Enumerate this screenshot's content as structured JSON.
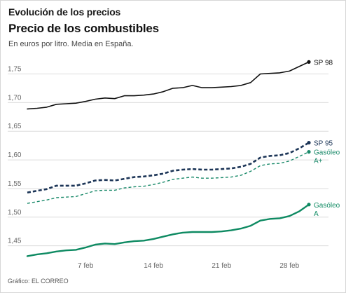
{
  "header": {
    "kicker": "Evolución de los precios",
    "title": "Precio de los combustibles",
    "subtitle": "En euros por litro. Media en España."
  },
  "footer": {
    "source": "Gráfico: EL CORREO"
  },
  "chart_data": {
    "type": "line",
    "title": "Precio de los combustibles",
    "subtitle": "En euros por litro. Media en España.",
    "xlabel": "",
    "ylabel": "",
    "ylim": [
      1.43,
      1.78
    ],
    "y_ticks": [
      1.45,
      1.5,
      1.55,
      1.6,
      1.65,
      1.7,
      1.75
    ],
    "y_tick_labels": [
      "1,45",
      "1,50",
      "1,55",
      "1,60",
      "1,65",
      "1,70",
      "1,75"
    ],
    "x_tick_labels": [
      "7 feb",
      "14 feb",
      "21 feb",
      "28 feb"
    ],
    "x_tick_days": [
      7,
      14,
      21,
      28
    ],
    "x": [
      1,
      2,
      3,
      4,
      5,
      6,
      7,
      8,
      9,
      10,
      11,
      12,
      13,
      14,
      15,
      16,
      17,
      18,
      19,
      20,
      21,
      22,
      23,
      24,
      25,
      26,
      27,
      28,
      29,
      30
    ],
    "xlim": [
      1,
      30
    ],
    "grid": true,
    "legend": "end-of-line labels",
    "series": [
      {
        "name": "SP 98",
        "label_lines": [
          "SP 98"
        ],
        "color": "#111111",
        "style": "solid",
        "values": [
          1.689,
          1.69,
          1.692,
          1.697,
          1.698,
          1.699,
          1.702,
          1.706,
          1.708,
          1.707,
          1.712,
          1.712,
          1.713,
          1.715,
          1.719,
          1.725,
          1.726,
          1.73,
          1.726,
          1.726,
          1.727,
          1.728,
          1.73,
          1.735,
          1.75,
          1.751,
          1.752,
          1.755,
          1.763,
          1.771
        ]
      },
      {
        "name": "SP 95",
        "label_lines": [
          "SP 95"
        ],
        "color": "#1c3557",
        "style": "dashed-bold",
        "values": [
          1.543,
          1.546,
          1.549,
          1.555,
          1.555,
          1.555,
          1.559,
          1.564,
          1.565,
          1.564,
          1.567,
          1.57,
          1.571,
          1.573,
          1.576,
          1.581,
          1.583,
          1.584,
          1.583,
          1.583,
          1.584,
          1.585,
          1.588,
          1.593,
          1.604,
          1.607,
          1.608,
          1.612,
          1.62,
          1.63
        ]
      },
      {
        "name": "Gasóleo A+",
        "label_lines": [
          "Gasóleo",
          "A+"
        ],
        "color": "#1a8a6a",
        "style": "dashed-thin",
        "values": [
          1.524,
          1.527,
          1.53,
          1.534,
          1.535,
          1.536,
          1.541,
          1.546,
          1.547,
          1.547,
          1.551,
          1.553,
          1.554,
          1.557,
          1.561,
          1.566,
          1.568,
          1.57,
          1.568,
          1.568,
          1.569,
          1.57,
          1.573,
          1.58,
          1.59,
          1.593,
          1.594,
          1.598,
          1.606,
          1.614
        ]
      },
      {
        "name": "Gasóleo A",
        "label_lines": [
          "Gasóleo",
          "A"
        ],
        "color": "#0e8a62",
        "style": "solid-thick",
        "values": [
          1.432,
          1.435,
          1.437,
          1.44,
          1.442,
          1.443,
          1.447,
          1.452,
          1.454,
          1.453,
          1.456,
          1.458,
          1.459,
          1.462,
          1.466,
          1.47,
          1.473,
          1.474,
          1.474,
          1.474,
          1.475,
          1.477,
          1.48,
          1.485,
          1.494,
          1.497,
          1.498,
          1.502,
          1.51,
          1.522
        ]
      }
    ]
  }
}
